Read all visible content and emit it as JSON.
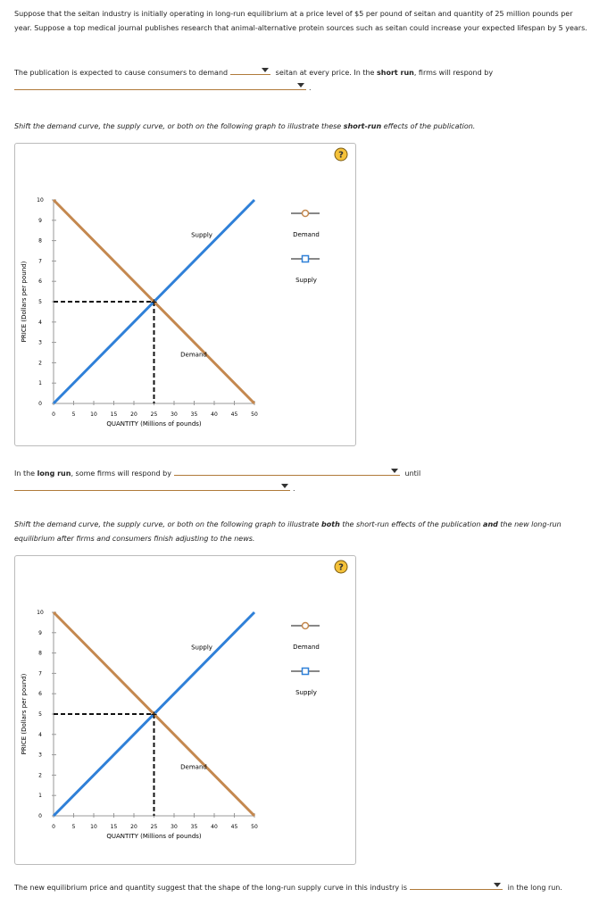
{
  "intro": "Suppose that the seitan industry is initially operating in long-run equilibrium at a price level of $5 per pound of seitan and quantity of 25 million pounds per year. Suppose a top medical journal publishes research that animal-alternative protein sources such as seitan could increase your expected lifespan by 5 years.",
  "question1": {
    "part1": "The publication is expected to cause consumers to demand",
    "part2": "seitan at every price. In the",
    "bold": "short run",
    "part3": ", firms will respond by",
    "end": "."
  },
  "instruction1": {
    "part1": "Shift the demand curve, the supply curve, or both on the following graph to illustrate these",
    "bold": "short-run",
    "part2": "effects of the publication."
  },
  "question2": {
    "part1": "In the",
    "bold": "long run",
    "part2": ", some firms will respond by",
    "part3": "until",
    "end": "."
  },
  "instruction2": {
    "part1": "Shift the demand curve, the supply curve, or both on the following graph to illustrate",
    "bold1": "both",
    "part2": "the short-run effects of the publication",
    "bold2": "and",
    "part3": "the new long-run equilibrium after firms and consumers finish adjusting to the news."
  },
  "question3": {
    "part1": "The new equilibrium price and quantity suggest that the shape of the long-run supply curve in this industry is",
    "part2": "in the long run."
  },
  "graphs": [
    {
      "help": "?",
      "x_label": "QUANTITY (Millions of pounds)",
      "y_label": "PRICE (Dollars per pound)",
      "xlim": [
        0,
        50
      ],
      "ylim": [
        0,
        10
      ],
      "xticks": [
        0,
        5,
        10,
        15,
        20,
        25,
        30,
        35,
        40,
        45,
        50
      ],
      "yticks": [
        0,
        1,
        2,
        3,
        4,
        5,
        6,
        7,
        8,
        9,
        10
      ],
      "equilibrium": {
        "x": 25,
        "y": 5
      },
      "curves": [
        {
          "name": "Supply",
          "color": "#2f80d8",
          "x": [
            0,
            50
          ],
          "y": [
            0,
            10
          ]
        },
        {
          "name": "Demand",
          "color": "#c4884f",
          "x": [
            0,
            50
          ],
          "y": [
            10,
            0
          ]
        }
      ]
    },
    {
      "help": "?",
      "x_label": "QUANTITY (Millions of pounds)",
      "y_label": "PRICE (Dollars per pound)",
      "xlim": [
        0,
        50
      ],
      "ylim": [
        0,
        10
      ],
      "xticks": [
        0,
        5,
        10,
        15,
        20,
        25,
        30,
        35,
        40,
        45,
        50
      ],
      "yticks": [
        0,
        1,
        2,
        3,
        4,
        5,
        6,
        7,
        8,
        9,
        10
      ],
      "equilibrium": {
        "x": 25,
        "y": 5
      },
      "curves": [
        {
          "name": "Supply",
          "color": "#2f80d8",
          "x": [
            0,
            50
          ],
          "y": [
            0,
            10
          ]
        },
        {
          "name": "Demand",
          "color": "#c4884f",
          "x": [
            0,
            50
          ],
          "y": [
            10,
            0
          ]
        }
      ]
    }
  ]
}
